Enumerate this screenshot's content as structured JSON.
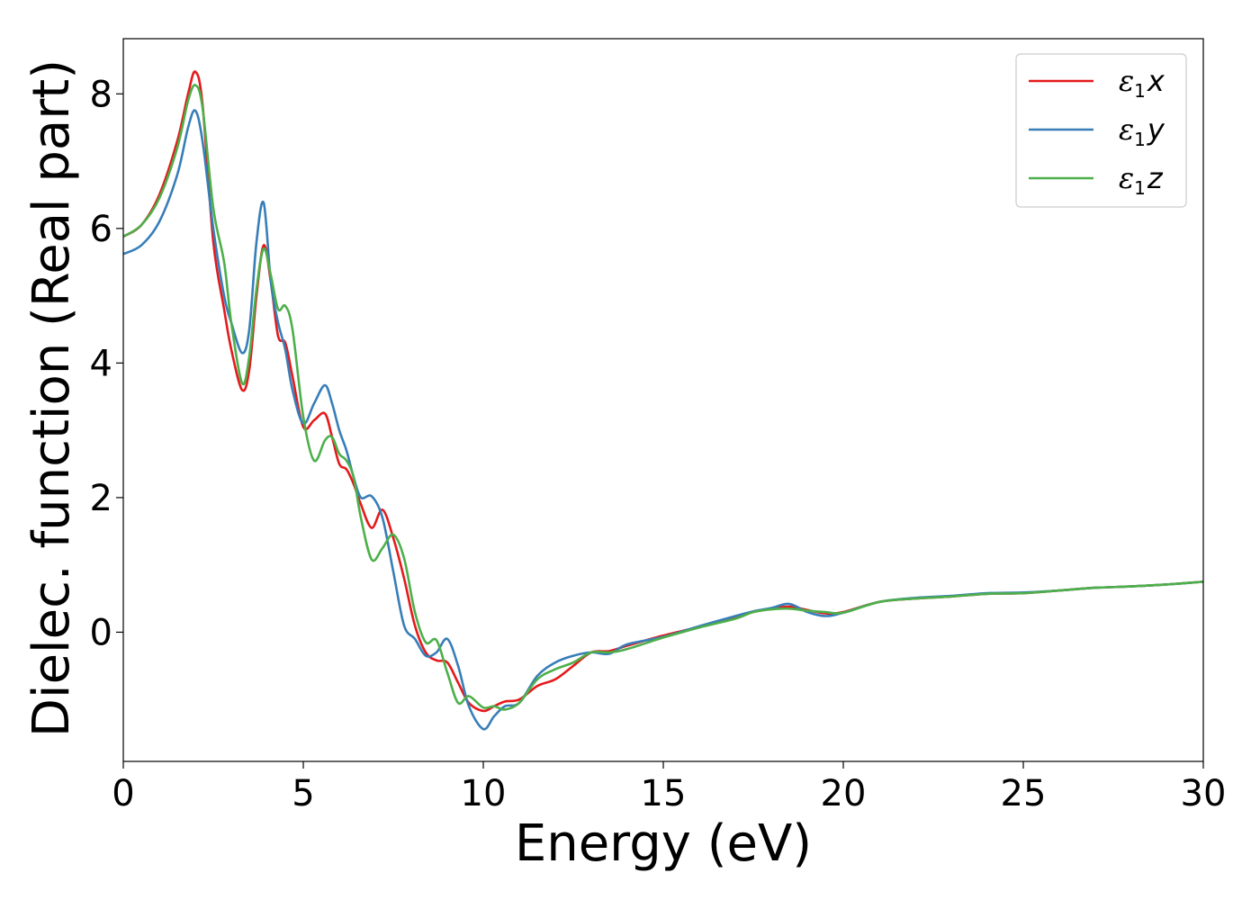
{
  "chart_data": {
    "type": "line",
    "title": "",
    "xlabel": "Energy (eV)",
    "ylabel": "Dielec. function (Real part)",
    "xlim": [
      0,
      30
    ],
    "ylim": [
      -1.92,
      8.82
    ],
    "xticks": [
      0,
      5,
      10,
      15,
      20,
      25,
      30
    ],
    "yticks": [
      0,
      2,
      4,
      6,
      8
    ],
    "grid": false,
    "legend_position": "top-right",
    "series": [
      {
        "name": "ε1x",
        "symbol": "ε",
        "subscript": "1",
        "variable": "x",
        "color": "#e41a1c",
        "x": [
          0,
          0.5,
          1.0,
          1.5,
          1.8,
          2.0,
          2.2,
          2.5,
          2.8,
          3.0,
          3.3,
          3.5,
          3.7,
          3.9,
          4.1,
          4.3,
          4.5,
          4.7,
          5.0,
          5.3,
          5.6,
          5.8,
          6.0,
          6.2,
          6.4,
          6.6,
          6.9,
          7.2,
          7.5,
          7.8,
          8.1,
          8.4,
          8.7,
          9.0,
          9.3,
          9.6,
          10.0,
          10.3,
          10.6,
          11.0,
          11.5,
          12.0,
          12.5,
          13.0,
          13.5,
          14.0,
          15.0,
          16.0,
          17.0,
          17.5,
          18.0,
          18.5,
          19.0,
          19.5,
          20.0,
          21.0,
          22.0,
          23.0,
          24.0,
          25.0,
          26.0,
          27.0,
          28.0,
          29.0,
          30.0
        ],
        "y": [
          5.88,
          6.05,
          6.5,
          7.3,
          8.0,
          8.33,
          7.85,
          5.8,
          4.8,
          4.2,
          3.6,
          3.9,
          5.0,
          5.75,
          5.2,
          4.4,
          4.3,
          3.8,
          3.05,
          3.15,
          3.25,
          2.9,
          2.5,
          2.42,
          2.2,
          1.9,
          1.55,
          1.82,
          1.4,
          0.8,
          0.1,
          -0.3,
          -0.42,
          -0.45,
          -0.75,
          -1.05,
          -1.17,
          -1.1,
          -1.03,
          -1.0,
          -0.8,
          -0.7,
          -0.5,
          -0.3,
          -0.28,
          -0.2,
          -0.05,
          0.08,
          0.22,
          0.3,
          0.35,
          0.38,
          0.33,
          0.28,
          0.3,
          0.45,
          0.5,
          0.53,
          0.57,
          0.58,
          0.62,
          0.66,
          0.68,
          0.71,
          0.75
        ]
      },
      {
        "name": "ε1y",
        "symbol": "ε",
        "subscript": "1",
        "variable": "y",
        "color": "#377eb8",
        "x": [
          0,
          0.5,
          1.0,
          1.5,
          1.8,
          2.0,
          2.2,
          2.5,
          2.8,
          3.0,
          3.3,
          3.5,
          3.7,
          3.9,
          4.1,
          4.3,
          4.5,
          4.7,
          5.0,
          5.3,
          5.6,
          5.8,
          6.0,
          6.2,
          6.4,
          6.6,
          6.9,
          7.2,
          7.5,
          7.8,
          8.1,
          8.4,
          8.7,
          9.0,
          9.3,
          9.6,
          10.0,
          10.3,
          10.6,
          11.0,
          11.5,
          12.0,
          12.5,
          13.0,
          13.5,
          14.0,
          15.0,
          16.0,
          17.0,
          17.5,
          18.0,
          18.5,
          19.0,
          19.5,
          20.0,
          21.0,
          22.0,
          23.0,
          24.0,
          25.0,
          26.0,
          27.0,
          28.0,
          29.0,
          30.0
        ],
        "y": [
          5.62,
          5.75,
          6.1,
          6.8,
          7.5,
          7.75,
          7.3,
          6.0,
          5.0,
          4.6,
          4.15,
          4.5,
          5.8,
          6.38,
          5.2,
          4.6,
          4.2,
          3.6,
          3.1,
          3.4,
          3.67,
          3.4,
          3.0,
          2.7,
          2.3,
          2.0,
          2.02,
          1.7,
          0.9,
          0.1,
          -0.1,
          -0.35,
          -0.3,
          -0.1,
          -0.5,
          -1.1,
          -1.44,
          -1.25,
          -1.1,
          -1.05,
          -0.65,
          -0.45,
          -0.35,
          -0.3,
          -0.32,
          -0.18,
          -0.07,
          0.09,
          0.24,
          0.31,
          0.36,
          0.42,
          0.3,
          0.24,
          0.29,
          0.45,
          0.51,
          0.54,
          0.58,
          0.59,
          0.62,
          0.66,
          0.68,
          0.71,
          0.75
        ]
      },
      {
        "name": "ε1z",
        "symbol": "ε",
        "subscript": "1",
        "variable": "z",
        "color": "#4daf4a",
        "x": [
          0,
          0.5,
          1.0,
          1.5,
          1.8,
          2.0,
          2.2,
          2.5,
          2.8,
          3.0,
          3.3,
          3.5,
          3.7,
          3.9,
          4.1,
          4.3,
          4.5,
          4.7,
          5.0,
          5.3,
          5.6,
          5.8,
          6.0,
          6.2,
          6.4,
          6.6,
          6.9,
          7.2,
          7.5,
          7.8,
          8.1,
          8.4,
          8.7,
          9.0,
          9.3,
          9.6,
          10.0,
          10.3,
          10.6,
          11.0,
          11.5,
          12.0,
          12.5,
          13.0,
          13.5,
          14.0,
          15.0,
          16.0,
          17.0,
          17.5,
          18.0,
          18.5,
          19.0,
          19.5,
          20.0,
          21.0,
          22.0,
          23.0,
          24.0,
          25.0,
          26.0,
          27.0,
          28.0,
          29.0,
          30.0
        ],
        "y": [
          5.88,
          6.05,
          6.45,
          7.2,
          7.9,
          8.13,
          7.8,
          6.3,
          5.5,
          4.6,
          3.7,
          4.1,
          5.1,
          5.7,
          5.3,
          4.8,
          4.85,
          4.5,
          3.2,
          2.55,
          2.85,
          2.9,
          2.65,
          2.55,
          2.3,
          1.7,
          1.08,
          1.25,
          1.45,
          1.1,
          0.3,
          -0.15,
          -0.12,
          -0.6,
          -1.05,
          -0.95,
          -1.12,
          -1.1,
          -1.15,
          -1.05,
          -0.7,
          -0.55,
          -0.45,
          -0.3,
          -0.3,
          -0.25,
          -0.08,
          0.07,
          0.2,
          0.3,
          0.34,
          0.35,
          0.32,
          0.3,
          0.29,
          0.45,
          0.5,
          0.53,
          0.57,
          0.58,
          0.62,
          0.66,
          0.68,
          0.71,
          0.75
        ]
      }
    ]
  }
}
